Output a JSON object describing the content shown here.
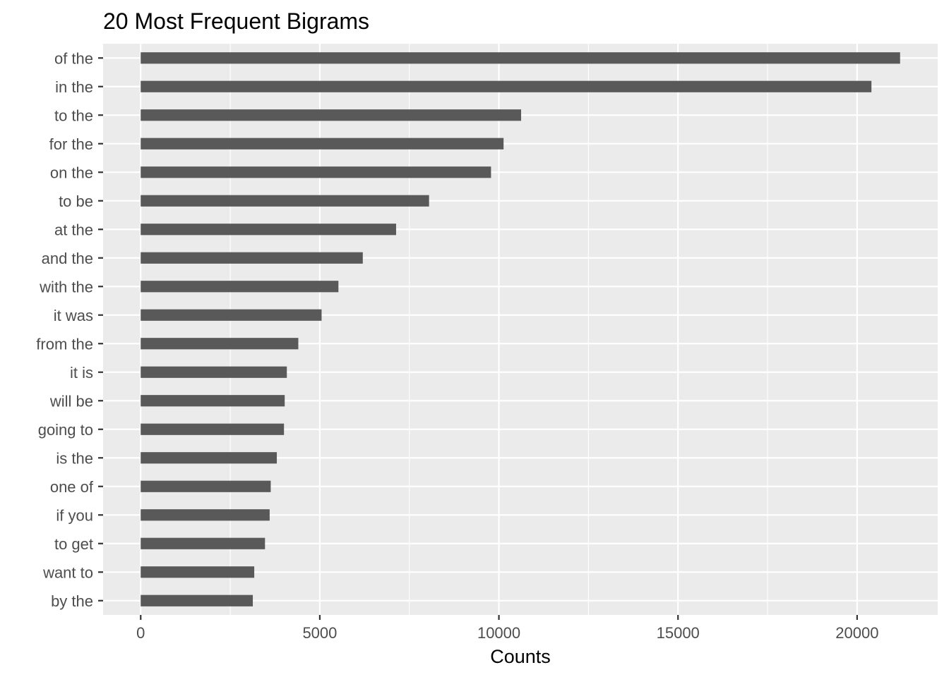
{
  "chart_data": {
    "type": "bar",
    "orientation": "horizontal",
    "title": "20 Most Frequent Bigrams",
    "xlabel": "Counts",
    "ylabel": "",
    "categories": [
      "of the",
      "in the",
      "to the",
      "for the",
      "on the",
      "to be",
      "at the",
      "and the",
      "with the",
      "it was",
      "from the",
      "it is",
      "will be",
      "going to",
      "is the",
      "one of",
      "if you",
      "to get",
      "want to",
      "by the"
    ],
    "values": [
      21200,
      20400,
      10620,
      10130,
      9780,
      8050,
      7130,
      6200,
      5520,
      5050,
      4400,
      4080,
      4020,
      4000,
      3800,
      3630,
      3600,
      3470,
      3170,
      3130
    ],
    "x_ticks": [
      0,
      5000,
      10000,
      15000,
      20000
    ],
    "xlim": [
      -1050,
      22250
    ],
    "grid": true,
    "legend": "none",
    "colors": {
      "panel": "#ebebeb",
      "bar": "#595959",
      "grid": "#ffffff"
    }
  }
}
